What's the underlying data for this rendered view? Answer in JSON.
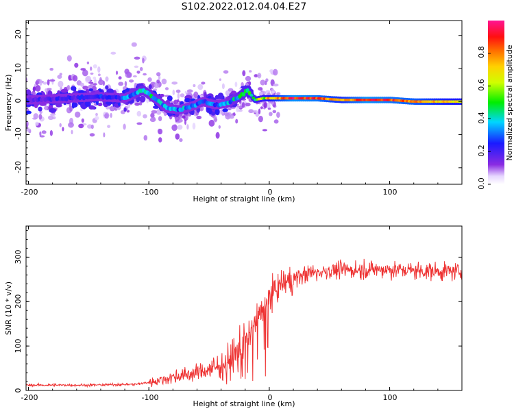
{
  "figure": {
    "title": "S102.2022.012.04.04.E27"
  },
  "chart_data": [
    {
      "type": "heatmap",
      "xlabel": "Height of straight line (km)",
      "ylabel": "Frequency (Hz)",
      "xlim": [
        -202,
        160
      ],
      "ylim": [
        -25,
        24.5
      ],
      "xticks": [
        -200,
        -100,
        0,
        100
      ],
      "xtick_labels": [
        "-200",
        "-100",
        "0",
        "100"
      ],
      "yticks": [
        -20,
        -10,
        0,
        10,
        20
      ],
      "ytick_labels": [
        "-20",
        "-10",
        "0",
        "10",
        "20"
      ],
      "colorbar": {
        "label": "Normalized spectral amplitude",
        "range": [
          0.0,
          1.0
        ],
        "ticks": [
          0.0,
          0.2,
          0.4,
          0.6,
          0.8
        ],
        "tick_labels": [
          "0.0",
          "0.2",
          "0.4",
          "0.6",
          "0.8"
        ],
        "colormap": "rainbow (white-violet-blue-cyan-green-yellow-orange-red-magenta)"
      },
      "ridge": {
        "x": [
          -200,
          -170,
          -140,
          -120,
          -105,
          -95,
          -85,
          -75,
          -65,
          -55,
          -45,
          -35,
          -25,
          -18,
          -15,
          -12,
          -5,
          0,
          20,
          40,
          60,
          80,
          100,
          120,
          140,
          160
        ],
        "y": [
          0.5,
          1.0,
          1.5,
          1.0,
          3.5,
          1.0,
          -2.0,
          -2.5,
          -1.5,
          0.0,
          -1.0,
          -0.5,
          1.5,
          3.5,
          2.0,
          0.5,
          1.0,
          1.0,
          1.0,
          1.0,
          0.5,
          0.5,
          0.5,
          0.0,
          0.0,
          0.0
        ],
        "amplitude": [
          0.2,
          0.2,
          0.25,
          0.3,
          0.45,
          0.4,
          0.35,
          0.35,
          0.35,
          0.3,
          0.3,
          0.35,
          0.45,
          0.55,
          0.55,
          0.6,
          0.6,
          0.7,
          0.95,
          0.9,
          0.75,
          0.95,
          0.9,
          0.85,
          0.75,
          0.7
        ]
      }
    },
    {
      "type": "line",
      "xlabel": "Height of straight line (km)",
      "ylabel": "SNR (10 * v/v)",
      "xlim": [
        -202,
        160
      ],
      "ylim": [
        0,
        370
      ],
      "xticks": [
        -200,
        -100,
        0,
        100
      ],
      "xtick_labels": [
        "-200",
        "-100",
        "0",
        "100"
      ],
      "yticks": [
        0,
        100,
        200,
        300
      ],
      "ytick_labels": [
        "0",
        "100",
        "200",
        "300"
      ],
      "color": "#ee3333",
      "trend": {
        "x": [
          -202,
          -150,
          -110,
          -100,
          -80,
          -60,
          -40,
          -30,
          -20,
          -10,
          0,
          10,
          20,
          30,
          50,
          80,
          100,
          120,
          140,
          160
        ],
        "y": [
          12,
          12,
          14,
          18,
          30,
          40,
          55,
          75,
          110,
          160,
          210,
          240,
          250,
          262,
          270,
          272,
          272,
          270,
          268,
          268
        ]
      }
    }
  ]
}
